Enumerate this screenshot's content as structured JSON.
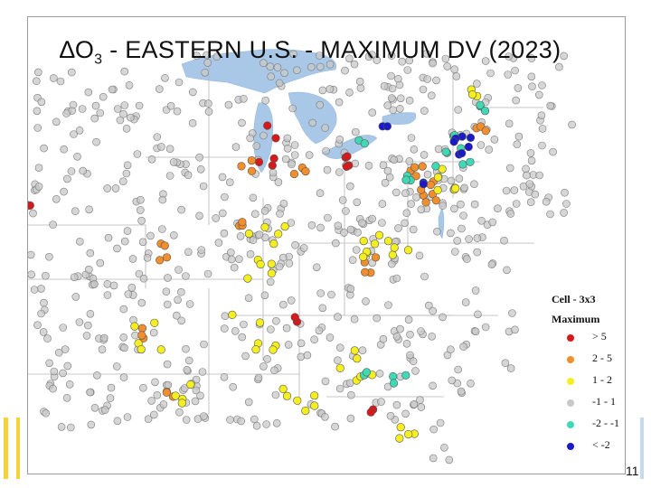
{
  "title": {
    "prefix": "∆O",
    "sub": "3",
    "rest": " - EASTERN U.S. - MAXIMUM DV (2023)"
  },
  "legend": {
    "title_line1": "Cell - 3x3",
    "title_line2": "Maximum",
    "items": [
      {
        "label": "> 5",
        "color": "#d7191c"
      },
      {
        "label": "2 - 5",
        "color": "#f28e2b"
      },
      {
        "label": "1 - 2",
        "color": "#f5ef1f"
      },
      {
        "label": "-1 - 1",
        "color": "#c8c8c8"
      },
      {
        "label": "-2 - -1",
        "color": "#3fd9b5"
      },
      {
        "label": "< -2",
        "color": "#1a1ac8"
      }
    ]
  },
  "page_number": "11",
  "colors": {
    "water": "#a9c8e8",
    "state_border": "#b5b5b5",
    "frame": "#9a9a9a"
  }
}
